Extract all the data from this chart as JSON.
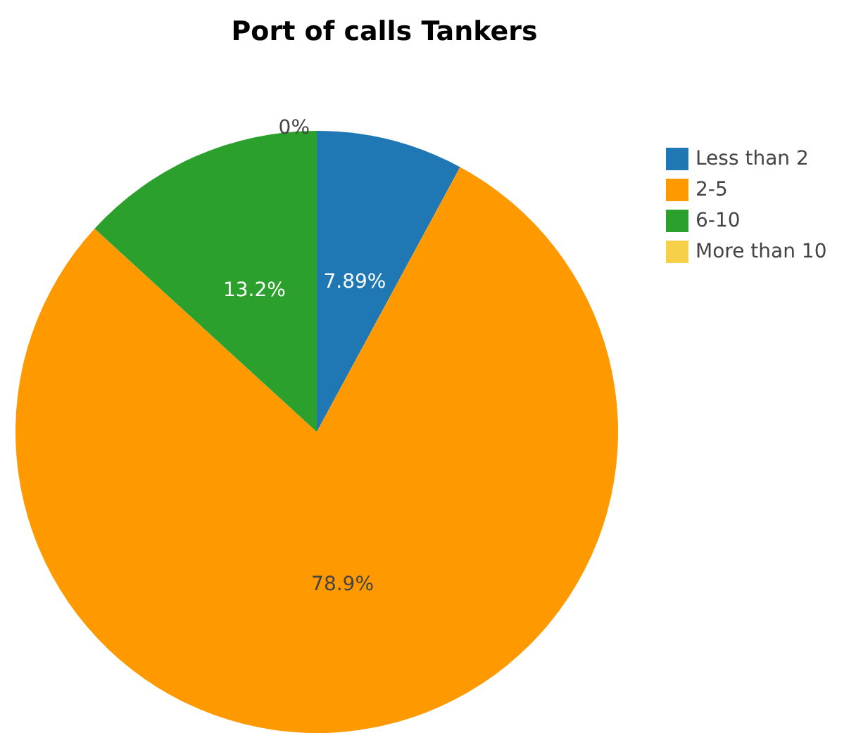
{
  "chart_data": {
    "type": "pie",
    "title": "Port of calls Tankers",
    "categories": [
      "Less than 2",
      "2-5",
      "6-10",
      "More than 10"
    ],
    "values": [
      7.89,
      78.9,
      13.2,
      0
    ],
    "colors": [
      "#1f77b4",
      "#ff9900",
      "#2ca02c",
      "#f7d04a"
    ],
    "value_labels": [
      "7.89%",
      "78.9%",
      "13.2%",
      "0%"
    ],
    "legend": "top right"
  }
}
